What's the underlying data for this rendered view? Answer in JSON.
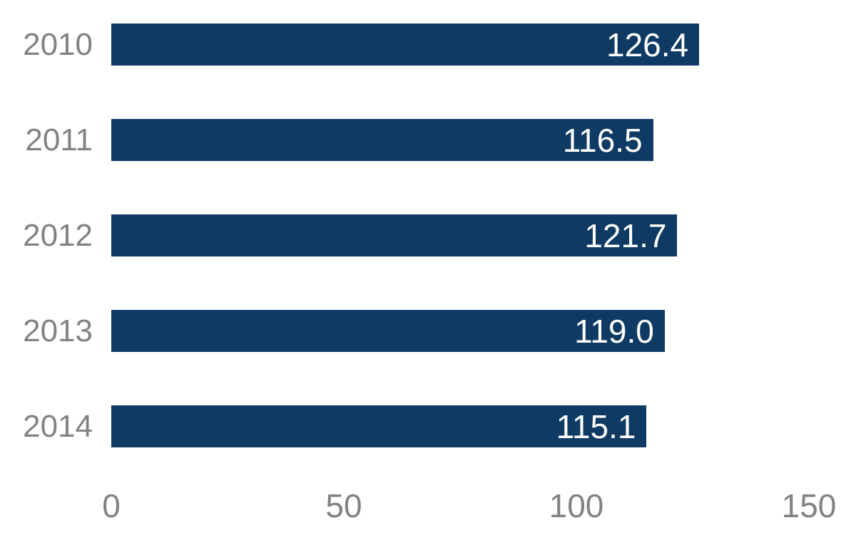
{
  "chart_data": {
    "type": "bar",
    "orientation": "horizontal",
    "title": "",
    "categories": [
      "2010",
      "2011",
      "2012",
      "2013",
      "2014"
    ],
    "values": [
      126.4,
      116.5,
      121.7,
      119.0,
      115.1
    ],
    "value_labels": [
      "126.4",
      "116.5",
      "121.7",
      "119.0",
      "115.1"
    ],
    "xlabel": "",
    "ylabel": "",
    "xlim": [
      0,
      150
    ],
    "x_ticks": [
      0,
      50,
      100,
      150
    ],
    "x_tick_labels": [
      "0",
      "50",
      "100",
      "150"
    ],
    "grid": false,
    "legend": false,
    "colors": {
      "bar": "#0e3a63",
      "category_label": "#828282",
      "tick_label": "#828282",
      "value_label": "#ffffff",
      "background": "#ffffff"
    }
  }
}
